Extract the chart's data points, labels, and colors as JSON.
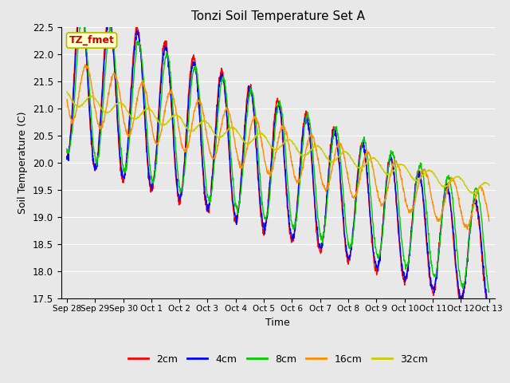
{
  "title": "Tonzi Soil Temperature Set A",
  "xlabel": "Time",
  "ylabel": "Soil Temperature (C)",
  "ylim": [
    17.5,
    22.5
  ],
  "background_color": "#e8e8e8",
  "plot_bg_color": "#e8e8e8",
  "grid_color": "white",
  "annotation_text": "TZ_fmet",
  "annotation_bg": "#ffffcc",
  "annotation_edge": "#b8b800",
  "annotation_text_color": "#cc0000",
  "series_colors": {
    "2cm": "#ff0000",
    "4cm": "#0000ff",
    "8cm": "#00cc00",
    "16cm": "#ff8c00",
    "32cm": "#cccc00"
  },
  "legend_labels": [
    "2cm",
    "4cm",
    "8cm",
    "16cm",
    "32cm"
  ],
  "xtick_labels": [
    "Sep 28",
    "Sep 29",
    "Sep 30",
    "Oct 1",
    "Oct 2",
    "Oct 3",
    "Oct 4",
    "Oct 5",
    "Oct 6",
    "Oct 7",
    "Oct 8",
    "Oct 9",
    "Oct 10",
    "Oct 11",
    "Oct 12",
    "Oct 13"
  ],
  "ytick_values": [
    17.5,
    18.0,
    18.5,
    19.0,
    19.5,
    20.0,
    20.5,
    21.0,
    21.5,
    22.0,
    22.5
  ],
  "n_points": 1440,
  "duration_days": 15
}
